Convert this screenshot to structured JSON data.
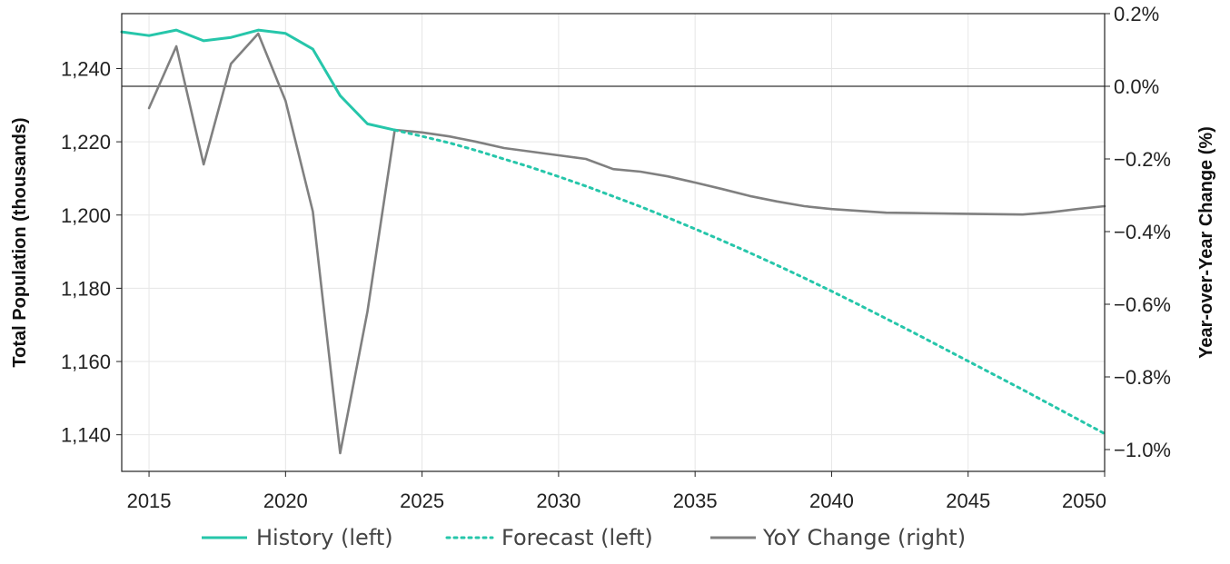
{
  "chart_data": {
    "type": "line",
    "title": "",
    "xlabel": "",
    "ylabel": "Total Population (thousands)",
    "y2label": "Year-over-Year Change (%)",
    "xlim": [
      2014,
      2050
    ],
    "ylim": [
      1130,
      1255
    ],
    "y2lim": [
      -1.06,
      0.2
    ],
    "x_ticks": [
      2015,
      2020,
      2025,
      2030,
      2035,
      2040,
      2045,
      2050
    ],
    "x_tick_labels": [
      "2015",
      "2020",
      "2025",
      "2030",
      "2035",
      "2040",
      "2045",
      "2050"
    ],
    "y_ticks": [
      1140,
      1160,
      1180,
      1200,
      1220,
      1240
    ],
    "y_tick_labels": [
      "1,140",
      "1,160",
      "1,180",
      "1,200",
      "1,220",
      "1,240"
    ],
    "y2_ticks": [
      0.2,
      0.0,
      -0.2,
      -0.4,
      -0.6,
      -0.8,
      -1.0
    ],
    "y2_tick_labels": [
      "0.2%",
      "0.0%",
      "−0.2%",
      "−0.4%",
      "−0.6%",
      "−0.8%",
      "−1.0%"
    ],
    "grid": true,
    "legend_position": "bottom",
    "series": [
      {
        "name": "History (left)",
        "axis": "left",
        "style": "solid",
        "color": "#26c6aa",
        "x": [
          2014,
          2015,
          2016,
          2017,
          2018,
          2019,
          2020,
          2021,
          2022,
          2023,
          2024
        ],
        "values": [
          1250,
          1249,
          1250.5,
          1247.6,
          1248.5,
          1250.5,
          1249.6,
          1245.3,
          1232.6,
          1224.9,
          1223.2
        ]
      },
      {
        "name": "Forecast (left)",
        "axis": "left",
        "style": "dotted",
        "color": "#26c6aa",
        "x": [
          2024,
          2025,
          2026,
          2027,
          2028,
          2029,
          2030,
          2031,
          2032,
          2033,
          2034,
          2035,
          2036,
          2037,
          2038,
          2039,
          2040,
          2041,
          2042,
          2043,
          2044,
          2045,
          2046,
          2047,
          2048,
          2049,
          2050
        ],
        "values": [
          1223.2,
          1221.5,
          1219.7,
          1217.6,
          1215.3,
          1213,
          1210.5,
          1207.9,
          1205.1,
          1202.3,
          1199.3,
          1196.2,
          1193,
          1189.7,
          1186.3,
          1182.8,
          1179.2,
          1175.5,
          1171.7,
          1167.9,
          1164,
          1160.1,
          1156.2,
          1152.3,
          1148.3,
          1144.3,
          1140.3
        ]
      },
      {
        "name": "YoY Change (right)",
        "axis": "right",
        "style": "solid",
        "color": "#808080",
        "x": [
          2015,
          2016,
          2017,
          2018,
          2019,
          2020,
          2021,
          2022,
          2023,
          2024,
          2025,
          2026,
          2027,
          2028,
          2029,
          2030,
          2031,
          2032,
          2033,
          2034,
          2035,
          2036,
          2037,
          2038,
          2039,
          2040,
          2041,
          2042,
          2043,
          2044,
          2045,
          2046,
          2047,
          2048,
          2049,
          2050
        ],
        "values": [
          -0.06,
          0.11,
          -0.215,
          0.062,
          0.145,
          -0.04,
          -0.345,
          -1.01,
          -0.62,
          -0.12,
          -0.127,
          -0.138,
          -0.153,
          -0.17,
          -0.18,
          -0.19,
          -0.2,
          -0.228,
          -0.235,
          -0.248,
          -0.265,
          -0.283,
          -0.302,
          -0.317,
          -0.33,
          -0.338,
          -0.343,
          -0.348,
          -0.349,
          -0.35,
          -0.351,
          -0.352,
          -0.353,
          -0.347,
          -0.338,
          -0.33
        ]
      }
    ],
    "reference_lines": [
      {
        "axis": "right",
        "value": 0.0,
        "color": "#333333"
      }
    ]
  }
}
